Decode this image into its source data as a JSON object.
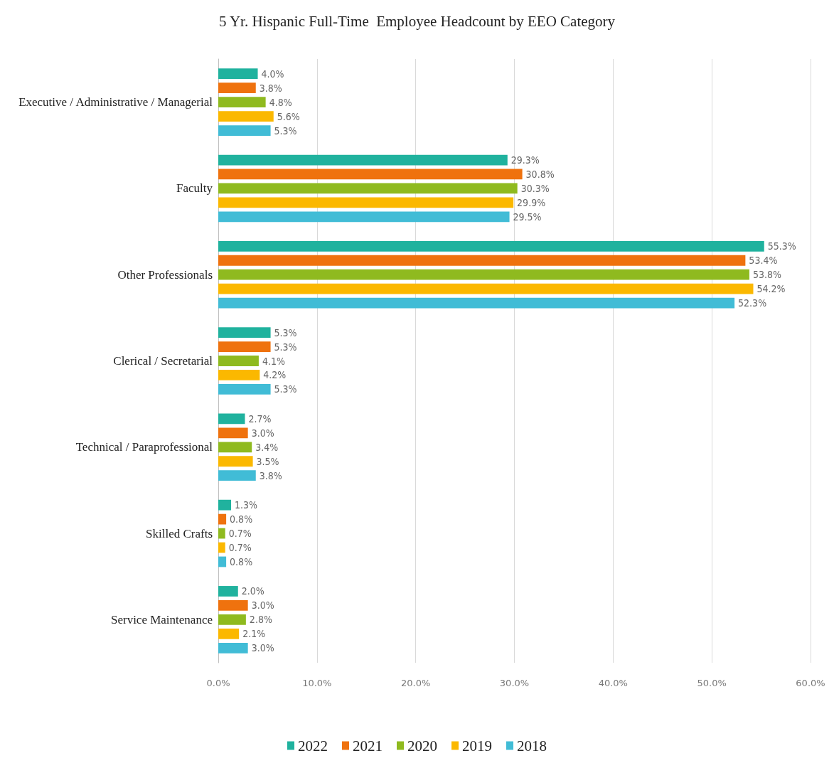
{
  "chart_data": {
    "type": "bar",
    "orientation": "horizontal",
    "title": "5 Yr. Hispanic Full-Time  Employee Headcount by EEO Category",
    "categories": [
      "Executive / Administrative / Managerial",
      "Faculty",
      "Other Professionals",
      "Clerical / Secretarial",
      "Technical / Paraprofessional",
      "Skilled Crafts",
      "Service Maintenance"
    ],
    "series": [
      {
        "name": "2022",
        "color": "#20b29e",
        "values": [
          4.0,
          29.3,
          55.3,
          5.3,
          2.7,
          1.3,
          2.0
        ],
        "value_labels": [
          "4.0%",
          "29.3%",
          "55.3%",
          "5.3%",
          "2.7%",
          "1.3%",
          "2.0%"
        ]
      },
      {
        "name": "2021",
        "color": "#ef720e",
        "values": [
          3.8,
          30.8,
          53.4,
          5.3,
          3.0,
          0.8,
          3.0
        ],
        "value_labels": [
          "3.8%",
          "30.8%",
          "53.4%",
          "5.3%",
          "3.0%",
          "0.8%",
          "3.0%"
        ]
      },
      {
        "name": "2020",
        "color": "#8fba1f",
        "values": [
          4.8,
          30.3,
          53.8,
          4.1,
          3.4,
          0.7,
          2.8
        ],
        "value_labels": [
          "4.8%",
          "30.3%",
          "53.8%",
          "4.1%",
          "3.4%",
          "0.7%",
          "2.8%"
        ]
      },
      {
        "name": "2019",
        "color": "#fbb800",
        "values": [
          5.6,
          29.9,
          54.2,
          4.2,
          3.5,
          0.7,
          2.1
        ],
        "value_labels": [
          "5.6%",
          "29.9%",
          "54.2%",
          "4.2%",
          "3.5%",
          "0.7%",
          "2.1%"
        ]
      },
      {
        "name": "2018",
        "color": "#41bcd6",
        "values": [
          5.3,
          29.5,
          52.3,
          5.3,
          3.8,
          0.8,
          3.0
        ],
        "value_labels": [
          "5.3%",
          "29.5%",
          "52.3%",
          "5.3%",
          "3.8%",
          "0.8%",
          "3.0%"
        ]
      }
    ],
    "xlim": [
      0,
      60
    ],
    "xticks": [
      {
        "value": 0,
        "label": "0.0%"
      },
      {
        "value": 10,
        "label": "10.0%"
      },
      {
        "value": 20,
        "label": "20.0%"
      },
      {
        "value": 30,
        "label": "30.0%"
      },
      {
        "value": 40,
        "label": "40.0%"
      },
      {
        "value": 50,
        "label": "50.0%"
      },
      {
        "value": 60,
        "label": "60.0%"
      }
    ],
    "grid": "x",
    "legend": "bottom"
  }
}
